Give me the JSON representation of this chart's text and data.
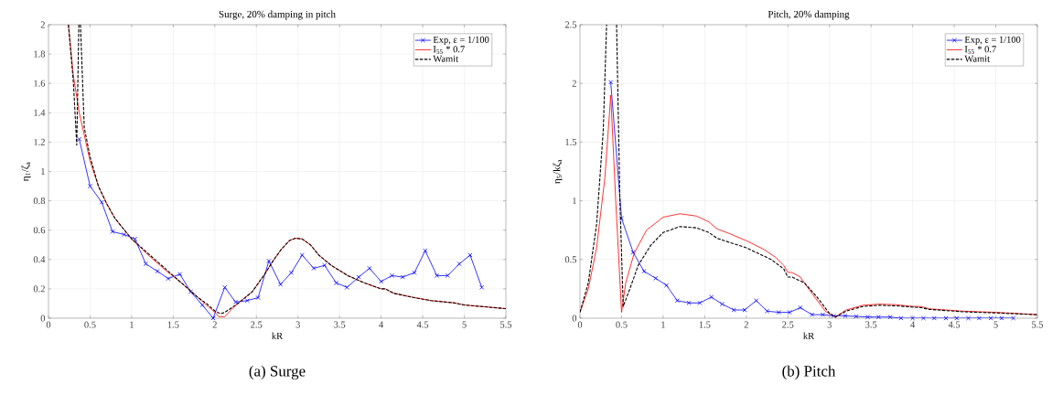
{
  "chart_data": [
    {
      "type": "line",
      "title": "Surge, 20% damping in pitch",
      "xlabel": "kR",
      "ylabel": "η$_{1}$/ζ$_{a}$",
      "annotations": [
        "(a) Surge"
      ],
      "xlim": [
        0,
        5.5
      ],
      "ylim": [
        0,
        2
      ],
      "xticks": [
        0,
        0.5,
        1,
        1.5,
        2,
        2.5,
        3,
        3.5,
        4,
        4.5,
        5,
        5.5
      ],
      "yticks": [
        0,
        0.2,
        0.4,
        0.6,
        0.8,
        1,
        1.2,
        1.4,
        1.6,
        1.8,
        2
      ],
      "grid": true,
      "legend": "top right",
      "series": [
        {
          "name": "Exp, ε = 1/100",
          "color": "#0000ff",
          "marker": "cross",
          "line_style": "solid",
          "x": [
            0.37,
            0.5,
            0.64,
            0.77,
            0.91,
            1.04,
            1.17,
            1.31,
            1.44,
            1.58,
            1.71,
            1.85,
            1.98,
            2.12,
            2.25,
            2.39,
            2.52,
            2.65,
            2.79,
            2.92,
            3.05,
            3.19,
            3.32,
            3.46,
            3.59,
            3.73,
            3.86,
            4.0,
            4.13,
            4.26,
            4.4,
            4.53,
            4.67,
            4.8,
            4.94,
            5.07,
            5.21
          ],
          "values": [
            1.22,
            0.9,
            0.79,
            0.59,
            0.57,
            0.54,
            0.37,
            0.32,
            0.27,
            0.3,
            0.18,
            0.09,
            0.0,
            0.21,
            0.11,
            0.12,
            0.14,
            0.39,
            0.23,
            0.31,
            0.43,
            0.34,
            0.36,
            0.24,
            0.21,
            0.28,
            0.34,
            0.25,
            0.29,
            0.28,
            0.31,
            0.46,
            0.29,
            0.29,
            0.37,
            0.43,
            0.21
          ]
        },
        {
          "name": "I$_{55}$ * 0.7",
          "color": "#ff0000",
          "marker": "none",
          "line_style": "solid",
          "x": [
            0.24,
            0.3,
            0.37,
            0.43,
            0.5,
            0.6,
            0.7,
            0.8,
            0.9,
            1.0,
            1.2,
            1.4,
            1.6,
            1.8,
            1.9,
            2.0,
            2.05,
            2.12,
            2.2,
            2.3,
            2.45,
            2.6,
            2.7,
            2.8,
            2.9,
            2.97,
            3.05,
            3.15,
            3.25,
            3.4,
            3.6,
            3.8,
            4.0,
            4.05,
            4.15,
            4.4,
            4.6,
            4.87,
            5.0,
            5.5
          ],
          "values": [
            2.0,
            1.65,
            1.4,
            1.25,
            1.07,
            0.9,
            0.78,
            0.68,
            0.61,
            0.54,
            0.43,
            0.33,
            0.24,
            0.14,
            0.09,
            0.04,
            0.01,
            0.01,
            0.06,
            0.11,
            0.18,
            0.3,
            0.39,
            0.47,
            0.53,
            0.545,
            0.54,
            0.5,
            0.43,
            0.36,
            0.29,
            0.24,
            0.2,
            0.2,
            0.17,
            0.14,
            0.12,
            0.105,
            0.09,
            0.065
          ]
        },
        {
          "name": "Wamit",
          "color": "#000000",
          "marker": "none",
          "line_style": "dashed",
          "x": [
            0.24,
            0.3,
            0.34,
            0.365,
            0.375,
            0.385,
            0.43,
            0.5,
            0.6,
            0.7,
            0.8,
            0.9,
            1.0,
            1.2,
            1.4,
            1.6,
            1.8,
            1.9,
            2.0,
            2.07,
            2.12,
            2.2,
            2.3,
            2.45,
            2.6,
            2.7,
            2.8,
            2.9,
            2.97,
            3.05,
            3.15,
            3.25,
            3.4,
            3.6,
            3.8,
            4.0,
            4.05,
            4.15,
            4.4,
            4.6,
            4.87,
            5.0,
            5.5
          ],
          "values": [
            2.0,
            1.6,
            1.18,
            2.0,
            null,
            2.0,
            1.3,
            1.1,
            0.9,
            0.78,
            0.68,
            0.61,
            0.54,
            0.44,
            0.34,
            0.24,
            0.14,
            0.1,
            0.05,
            0.03,
            0.04,
            0.07,
            0.11,
            0.18,
            0.3,
            0.39,
            0.47,
            0.53,
            0.545,
            0.54,
            0.5,
            0.43,
            0.36,
            0.29,
            0.24,
            0.2,
            0.2,
            0.17,
            0.14,
            0.12,
            0.105,
            0.09,
            0.065
          ]
        }
      ]
    },
    {
      "type": "line",
      "title": "Pitch, 20% damping",
      "xlabel": "kR",
      "ylabel": "η$_{5}$/kζ$_{a}$",
      "annotations": [
        "(b) Pitch"
      ],
      "xlim": [
        0,
        5.5
      ],
      "ylim": [
        0,
        2.5
      ],
      "xticks": [
        0,
        0.5,
        1,
        1.5,
        2,
        2.5,
        3,
        3.5,
        4,
        4.5,
        5,
        5.5
      ],
      "yticks": [
        0,
        0.5,
        1,
        1.5,
        2,
        2.5
      ],
      "grid": true,
      "legend": "top right",
      "series": [
        {
          "name": "Exp, ε = 1/100",
          "color": "#0000ff",
          "marker": "cross",
          "line_style": "solid",
          "x": [
            0.37,
            0.5,
            0.64,
            0.77,
            0.91,
            1.04,
            1.17,
            1.31,
            1.44,
            1.58,
            1.71,
            1.85,
            1.98,
            2.12,
            2.25,
            2.39,
            2.52,
            2.65,
            2.79,
            2.92,
            3.05,
            3.19,
            3.32,
            3.46,
            3.59,
            3.73,
            3.86,
            4.0,
            4.13,
            4.26,
            4.4,
            4.53,
            4.67,
            4.8,
            4.94,
            5.07,
            5.21
          ],
          "values": [
            2.01,
            0.85,
            0.56,
            0.4,
            0.34,
            0.28,
            0.15,
            0.13,
            0.13,
            0.18,
            0.12,
            0.07,
            0.07,
            0.15,
            0.06,
            0.05,
            0.05,
            0.09,
            0.03,
            0.03,
            0.02,
            0.02,
            0.015,
            0.01,
            0.01,
            0.01,
            0.0,
            0.0,
            0.0,
            0.0,
            0.0,
            0.0,
            0.0,
            0.0,
            0.0,
            0.0,
            0.0
          ]
        },
        {
          "name": "I$_{55}$ * 0.7",
          "color": "#ff0000",
          "marker": "none",
          "line_style": "solid",
          "x": [
            0,
            0.1,
            0.2,
            0.3,
            0.37,
            0.43,
            0.5,
            0.55,
            0.65,
            0.8,
            1.0,
            1.2,
            1.4,
            1.55,
            1.65,
            1.8,
            2.0,
            2.2,
            2.35,
            2.45,
            2.5,
            2.55,
            2.65,
            2.8,
            2.95,
            3.07,
            3.2,
            3.4,
            3.6,
            3.8,
            4.0,
            4.1,
            4.2,
            4.6,
            5.0,
            5.5
          ],
          "values": [
            0.05,
            0.25,
            0.6,
            1.2,
            1.9,
            1.0,
            0.05,
            0.3,
            0.55,
            0.75,
            0.86,
            0.89,
            0.87,
            0.82,
            0.76,
            0.72,
            0.66,
            0.59,
            0.52,
            0.45,
            0.39,
            0.39,
            0.35,
            0.2,
            0.06,
            0.01,
            0.07,
            0.11,
            0.12,
            0.115,
            0.1,
            0.1,
            0.08,
            0.06,
            0.05,
            0.03
          ]
        },
        {
          "name": "Wamit",
          "color": "#000000",
          "marker": "none",
          "line_style": "dashed",
          "x": [
            0,
            0.1,
            0.2,
            0.28,
            0.32,
            0.38,
            0.44,
            0.48,
            0.52,
            0.6,
            0.7,
            0.85,
            1.0,
            1.2,
            1.4,
            1.55,
            1.65,
            2.0,
            2.3,
            2.45,
            2.5,
            2.55,
            2.7,
            2.85,
            3.0,
            3.07,
            3.2,
            3.4,
            3.6,
            3.8,
            4.0,
            4.1,
            4.2,
            4.6,
            5.0,
            5.5
          ],
          "values": [
            0.05,
            0.3,
            0.8,
            1.6,
            2.5,
            null,
            2.5,
            1.0,
            0.1,
            0.25,
            0.45,
            0.62,
            0.73,
            0.78,
            0.77,
            0.73,
            0.68,
            0.6,
            0.5,
            0.42,
            0.35,
            0.35,
            0.3,
            0.18,
            0.04,
            0.01,
            0.06,
            0.1,
            0.11,
            0.105,
            0.095,
            0.09,
            0.075,
            0.055,
            0.045,
            0.03
          ]
        }
      ]
    }
  ]
}
